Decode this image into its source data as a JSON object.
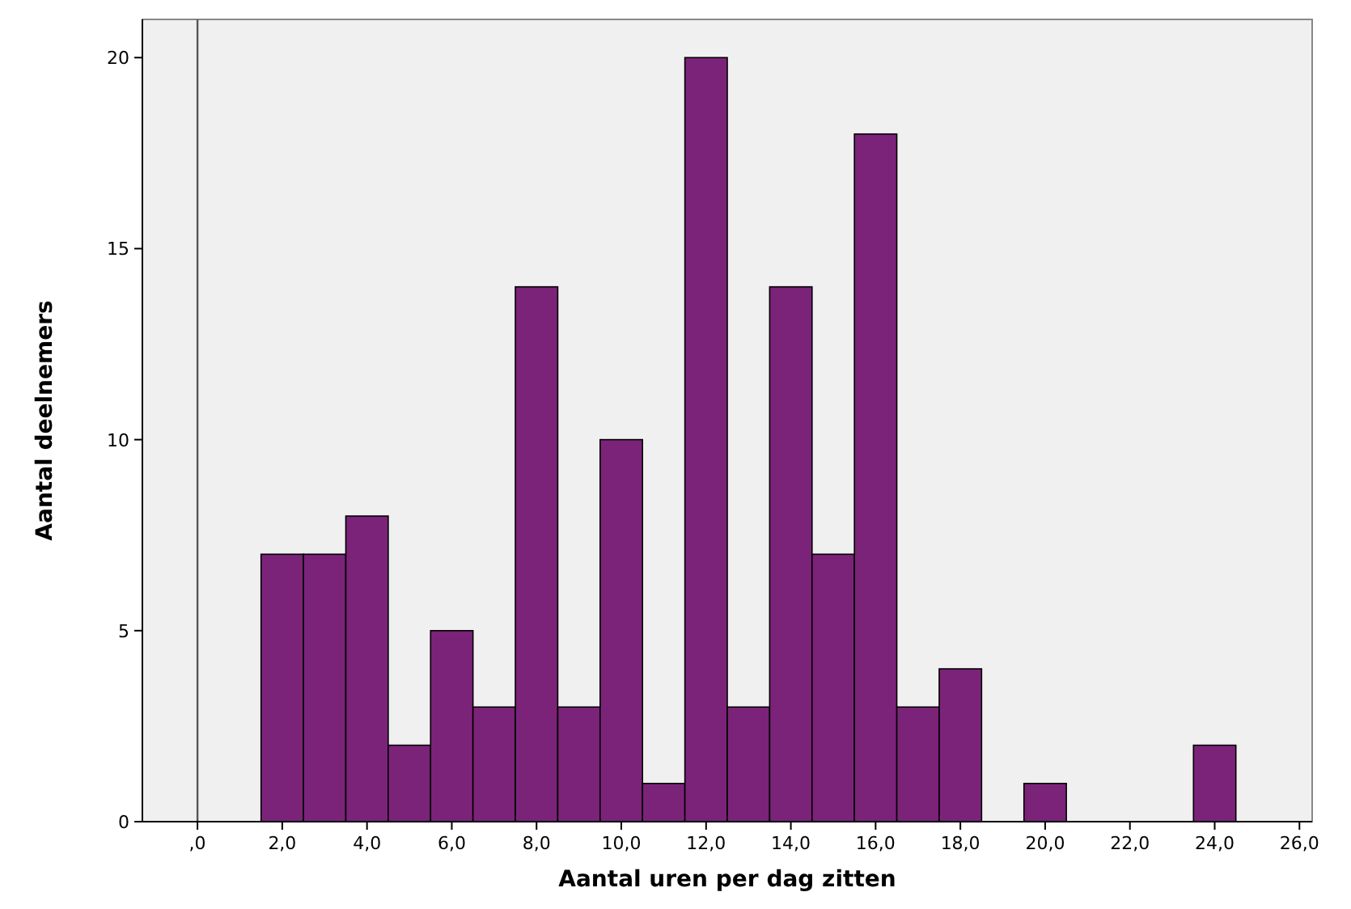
{
  "chart_data": {
    "type": "histogram",
    "xlabel": "Aantal uren per dag zitten",
    "ylabel": "Aantal deelnemers",
    "bins": [
      1.5,
      2.5,
      3.5,
      4.5,
      5.5,
      6.5,
      7.5,
      8.5,
      9.5,
      10.5,
      11.5,
      12.5,
      13.5,
      14.5,
      15.5,
      16.5,
      17.5,
      18.5,
      19.5,
      20.5,
      21.5,
      22.5,
      23.5,
      24.5
    ],
    "values": [
      7,
      7,
      8,
      2,
      5,
      3,
      14,
      3,
      10,
      1,
      20,
      3,
      14,
      7,
      18,
      3,
      4,
      0,
      1,
      0,
      0,
      0,
      2
    ],
    "color": "#7b2379",
    "xlim": [
      -1.3,
      26.3
    ],
    "xticks": [
      {
        "value": 0,
        "label": ",0"
      },
      {
        "value": 2,
        "label": "2,0"
      },
      {
        "value": 4,
        "label": "4,0"
      },
      {
        "value": 6,
        "label": "6,0"
      },
      {
        "value": 8,
        "label": "8,0"
      },
      {
        "value": 10,
        "label": "10,0"
      },
      {
        "value": 12,
        "label": "12,0"
      },
      {
        "value": 14,
        "label": "14,0"
      },
      {
        "value": 16,
        "label": "16,0"
      },
      {
        "value": 18,
        "label": "18,0"
      },
      {
        "value": 20,
        "label": "20,0"
      },
      {
        "value": 22,
        "label": "22,0"
      },
      {
        "value": 24,
        "label": "24,0"
      },
      {
        "value": 26,
        "label": "26,0"
      }
    ],
    "ylim": [
      0,
      21
    ],
    "yticks": [
      0,
      5,
      10,
      15,
      20
    ],
    "ref_lines": [
      {
        "axis": "x",
        "value": 0,
        "color": "#555555"
      }
    ],
    "grid": false
  }
}
